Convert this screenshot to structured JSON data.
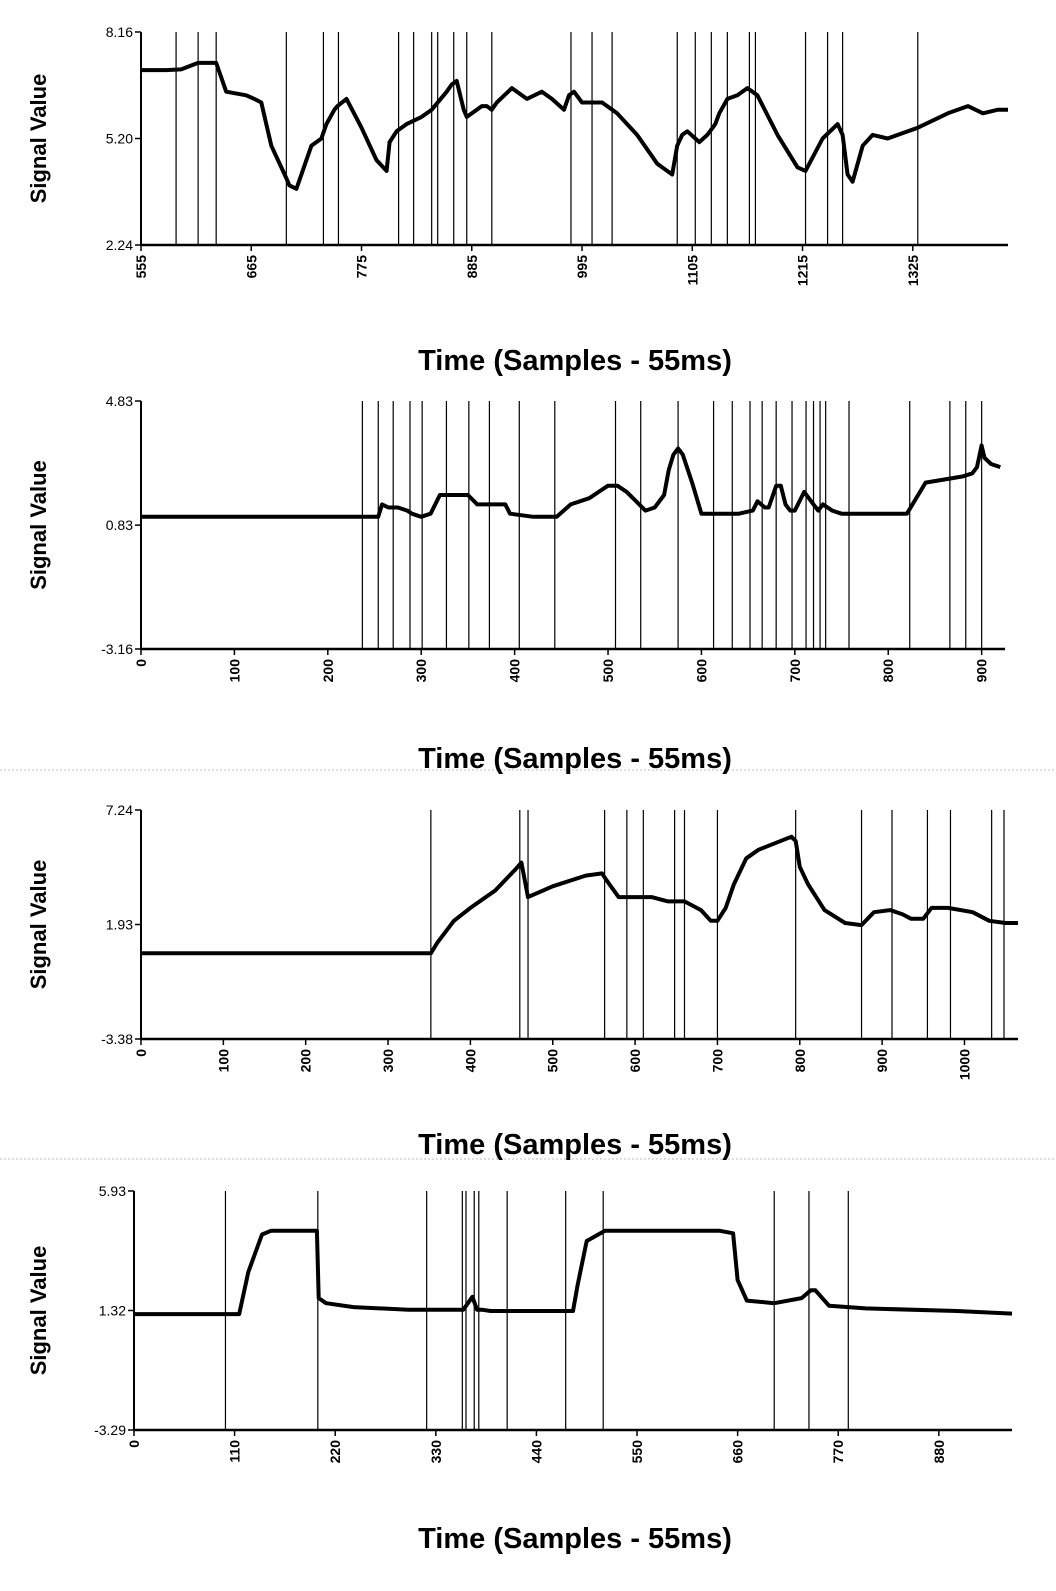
{
  "chart_data": [
    {
      "type": "line",
      "title": "",
      "xlabel": "Time (Samples - 55ms)",
      "ylabel": "Signal Value",
      "xlim": [
        555,
        1420
      ],
      "ylim": [
        2.24,
        8.16
      ],
      "yticks": [
        "2.24",
        "5.20",
        "8.16"
      ],
      "xticks": [
        "555",
        "665",
        "775",
        "885",
        "995",
        "1105",
        "1215",
        "1325"
      ],
      "grid": false,
      "events": [
        590,
        612,
        630,
        700,
        737,
        752,
        812,
        827,
        845,
        851,
        867,
        880,
        905,
        984,
        1005,
        1025,
        1090,
        1108,
        1124,
        1140,
        1162,
        1168,
        1218,
        1240,
        1255,
        1330
      ],
      "series": [
        {
          "x": [
            555,
            580,
            595,
            612,
            630,
            640,
            660,
            668,
            675,
            685,
            700,
            703,
            710,
            725,
            735,
            740,
            748,
            751,
            760,
            775,
            790,
            800,
            803,
            810,
            820,
            835,
            845,
            860,
            865,
            870,
            877,
            880,
            890,
            895,
            900,
            905,
            910,
            925,
            940,
            955,
            965,
            977,
            982,
            987,
            995,
            1005,
            1015,
            1030,
            1050,
            1070,
            1085,
            1090,
            1095,
            1100,
            1108,
            1112,
            1120,
            1128,
            1132,
            1140,
            1150,
            1160,
            1170,
            1190,
            1210,
            1218,
            1235,
            1250,
            1255,
            1260,
            1265,
            1275,
            1285,
            1300,
            1330,
            1360,
            1380,
            1395,
            1410,
            1420
          ],
          "y": [
            7.1,
            7.1,
            7.12,
            7.3,
            7.3,
            6.5,
            6.4,
            6.3,
            6.2,
            5.0,
            4.1,
            3.9,
            3.8,
            5.0,
            5.2,
            5.6,
            6.0,
            6.1,
            6.3,
            5.5,
            4.6,
            4.3,
            5.1,
            5.4,
            5.6,
            5.8,
            6.0,
            6.5,
            6.7,
            6.8,
            6.0,
            5.8,
            6.0,
            6.1,
            6.1,
            6.0,
            6.2,
            6.6,
            6.3,
            6.5,
            6.3,
            6.0,
            6.4,
            6.5,
            6.2,
            6.2,
            6.2,
            5.9,
            5.3,
            4.5,
            4.2,
            5.0,
            5.3,
            5.4,
            5.2,
            5.1,
            5.3,
            5.6,
            5.9,
            6.3,
            6.4,
            6.6,
            6.4,
            5.3,
            4.4,
            4.3,
            5.2,
            5.6,
            5.3,
            4.2,
            4.0,
            5.0,
            5.3,
            5.2,
            5.5,
            5.9,
            6.1,
            5.9,
            6.0,
            6.0
          ]
        }
      ]
    },
    {
      "type": "line",
      "title": "",
      "xlabel": "Time (Samples - 55ms)",
      "ylabel": "Signal Value",
      "xlim": [
        0,
        925
      ],
      "ylim": [
        -3.16,
        4.83
      ],
      "yticks": [
        "-3.16",
        "0.83",
        "4.83"
      ],
      "xticks": [
        "0",
        "100",
        "200",
        "300",
        "400",
        "500",
        "600",
        "700",
        "800",
        "900"
      ],
      "grid": false,
      "events": [
        237,
        254,
        270,
        288,
        301,
        327,
        351,
        373,
        405,
        443,
        508,
        535,
        575,
        613,
        633,
        652,
        665,
        680,
        697,
        712,
        720,
        727,
        733,
        758,
        823,
        866,
        883,
        900
      ],
      "series": [
        {
          "x": [
            0,
            100,
            200,
            254,
            258,
            265,
            275,
            285,
            290,
            300,
            310,
            320,
            330,
            350,
            360,
            380,
            390,
            395,
            420,
            445,
            460,
            480,
            490,
            500,
            510,
            520,
            540,
            550,
            560,
            565,
            570,
            575,
            580,
            590,
            600,
            625,
            640,
            655,
            660,
            668,
            672,
            680,
            685,
            690,
            695,
            700,
            710,
            720,
            725,
            730,
            740,
            750,
            760,
            790,
            820,
            840,
            860,
            880,
            890,
            895,
            900,
            903,
            910,
            920
          ],
          "y": [
            1.1,
            1.1,
            1.1,
            1.1,
            1.5,
            1.4,
            1.4,
            1.3,
            1.2,
            1.1,
            1.2,
            1.8,
            1.8,
            1.8,
            1.5,
            1.5,
            1.5,
            1.2,
            1.1,
            1.1,
            1.5,
            1.7,
            1.9,
            2.1,
            2.1,
            1.9,
            1.3,
            1.4,
            1.8,
            2.6,
            3.1,
            3.3,
            3.1,
            2.2,
            1.2,
            1.2,
            1.2,
            1.3,
            1.6,
            1.4,
            1.4,
            2.1,
            2.1,
            1.5,
            1.3,
            1.3,
            1.9,
            1.5,
            1.3,
            1.5,
            1.3,
            1.2,
            1.2,
            1.2,
            1.2,
            2.2,
            2.3,
            2.4,
            2.5,
            2.7,
            3.4,
            3.0,
            2.8,
            2.7
          ]
        }
      ]
    },
    {
      "type": "line",
      "title": "",
      "xlabel": "Time (Samples - 55ms)",
      "ylabel": "Signal Value",
      "xlim": [
        0,
        1065
      ],
      "ylim": [
        -3.38,
        7.24
      ],
      "yticks": [
        "-3.38",
        "1.93",
        "7.24"
      ],
      "xticks": [
        "0",
        "100",
        "200",
        "300",
        "400",
        "500",
        "600",
        "700",
        "800",
        "900",
        "1000"
      ],
      "grid": false,
      "events": [
        352,
        460,
        470,
        563,
        590,
        610,
        648,
        660,
        700,
        795,
        875,
        912,
        955,
        983,
        1033,
        1048
      ],
      "series": [
        {
          "x": [
            0,
            100,
            200,
            352,
            360,
            380,
            400,
            430,
            455,
            462,
            470,
            500,
            540,
            560,
            565,
            580,
            600,
            620,
            640,
            660,
            680,
            692,
            700,
            710,
            720,
            735,
            750,
            770,
            790,
            795,
            800,
            810,
            830,
            855,
            875,
            890,
            910,
            925,
            935,
            950,
            960,
            980,
            1010,
            1030,
            1050,
            1065
          ],
          "y": [
            0.6,
            0.6,
            0.6,
            0.6,
            1.1,
            2.1,
            2.7,
            3.5,
            4.5,
            4.8,
            3.2,
            3.7,
            4.2,
            4.3,
            4.0,
            3.2,
            3.2,
            3.2,
            3.0,
            3.0,
            2.6,
            2.1,
            2.1,
            2.7,
            3.8,
            5.0,
            5.4,
            5.7,
            6.0,
            5.8,
            4.6,
            3.8,
            2.6,
            2.0,
            1.9,
            2.5,
            2.6,
            2.4,
            2.2,
            2.2,
            2.7,
            2.7,
            2.5,
            2.1,
            2.0,
            2.0
          ]
        }
      ]
    },
    {
      "type": "line",
      "title": "",
      "xlabel": "Time (Samples - 55ms)",
      "ylabel": "Signal Value",
      "xlim": [
        0,
        960
      ],
      "ylim": [
        -3.29,
        5.93
      ],
      "yticks": [
        "-3.29",
        "1.32",
        "5.93"
      ],
      "xticks": [
        "0",
        "110",
        "220",
        "330",
        "440",
        "550",
        "660",
        "770",
        "880"
      ],
      "grid": false,
      "events": [
        100,
        201,
        320,
        359,
        363,
        372,
        377,
        408,
        472,
        513,
        700,
        738,
        781
      ],
      "series": [
        {
          "x": [
            0,
            100,
            115,
            125,
            140,
            150,
            175,
            190,
            200,
            202,
            210,
            240,
            300,
            360,
            370,
            375,
            380,
            390,
            450,
            480,
            485,
            495,
            515,
            530,
            550,
            600,
            640,
            655,
            660,
            670,
            700,
            730,
            740,
            745,
            760,
            800,
            900,
            960
          ],
          "y": [
            1.18,
            1.18,
            1.18,
            2.8,
            4.25,
            4.4,
            4.4,
            4.4,
            4.4,
            1.8,
            1.6,
            1.45,
            1.35,
            1.35,
            1.85,
            1.35,
            1.35,
            1.3,
            1.3,
            1.3,
            2.3,
            4.0,
            4.4,
            4.4,
            4.4,
            4.4,
            4.4,
            4.3,
            2.5,
            1.7,
            1.6,
            1.8,
            2.1,
            2.1,
            1.5,
            1.4,
            1.3,
            1.2
          ]
        }
      ]
    }
  ]
}
